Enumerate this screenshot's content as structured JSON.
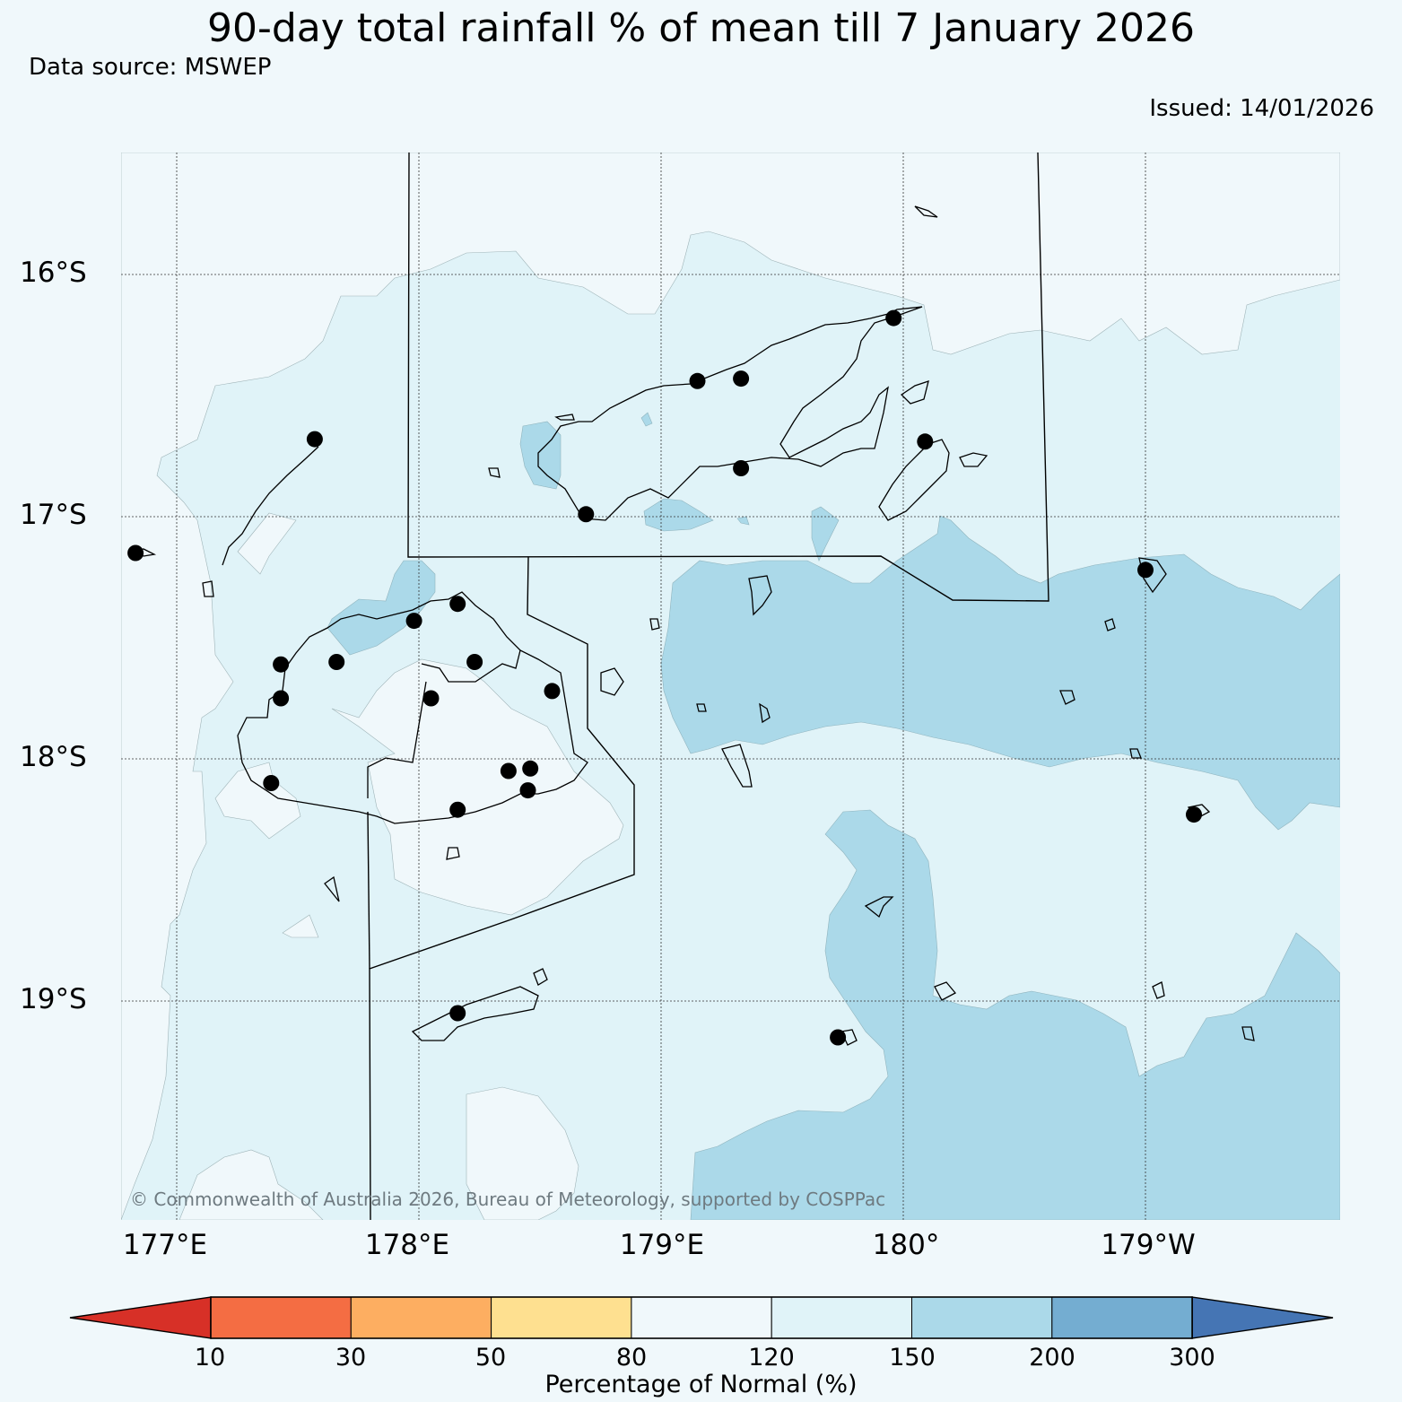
{
  "title": "90-day total rainfall % of mean till 7 January 2026",
  "source": "Data source: MSWEP",
  "issued": "Issued: 14/01/2026",
  "copyright": "© Commonwealth of Australia 2026, Bureau of Meteorology, supported by COSPPac",
  "lat_labels": [
    "16°S",
    "17°S",
    "18°S",
    "19°S"
  ],
  "lon_labels": [
    "177°E",
    "178°E",
    "179°E",
    "180°",
    "179°W"
  ],
  "colorbar": {
    "title": "Percentage of Normal (%)",
    "ticks": [
      "10",
      "30",
      "50",
      "80",
      "120",
      "150",
      "200",
      "300"
    ],
    "colors": [
      "#d73027",
      "#f46d43",
      "#fdae61",
      "#fee090",
      "#f0f8fb",
      "#e0f3f8",
      "#abd9e9",
      "#74add1",
      "#4575b4"
    ]
  },
  "stations": [
    {
      "lon": 176.83,
      "lat": -17.15
    },
    {
      "lon": 177.57,
      "lat": -16.68
    },
    {
      "lon": 177.43,
      "lat": -17.61
    },
    {
      "lon": 177.43,
      "lat": -17.75
    },
    {
      "lon": 177.39,
      "lat": -18.1
    },
    {
      "lon": 177.66,
      "lat": -17.6
    },
    {
      "lon": 177.98,
      "lat": -17.43
    },
    {
      "lon": 178.16,
      "lat": -17.36
    },
    {
      "lon": 178.23,
      "lat": -17.6
    },
    {
      "lon": 178.05,
      "lat": -17.75
    },
    {
      "lon": 178.55,
      "lat": -17.72
    },
    {
      "lon": 178.37,
      "lat": -18.05
    },
    {
      "lon": 178.46,
      "lat": -18.04
    },
    {
      "lon": 178.45,
      "lat": -18.13
    },
    {
      "lon": 178.16,
      "lat": -18.21
    },
    {
      "lon": 178.16,
      "lat": -19.05
    },
    {
      "lon": 178.69,
      "lat": -16.99
    },
    {
      "lon": 179.15,
      "lat": -16.44
    },
    {
      "lon": 179.33,
      "lat": -16.43
    },
    {
      "lon": 179.33,
      "lat": -16.8
    },
    {
      "lon": 179.96,
      "lat": -16.18
    },
    {
      "lon": 180.09,
      "lat": -16.69
    },
    {
      "lon": 179.73,
      "lat": -19.15
    },
    {
      "lon": 181.0,
      "lat": -17.22
    },
    {
      "lon": 181.2,
      "lat": -18.23
    }
  ]
}
